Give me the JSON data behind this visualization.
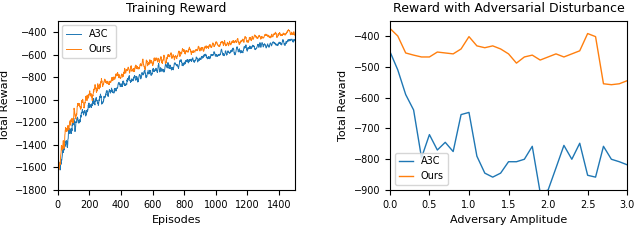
{
  "left_title": "Training Reward",
  "right_title": "Reward with Adversarial Disturbance",
  "left_xlabel": "Episodes",
  "right_xlabel": "Adversary Amplitude",
  "ylabel": "Total Reward",
  "blue_color": "#1f77b4",
  "orange_color": "#ff7f0e",
  "legend_a3c": "A3C",
  "legend_ours": "Ours",
  "left_ylim": [
    -1800,
    -300
  ],
  "left_xlim": [
    0,
    1500
  ],
  "left_yticks": [
    -1800,
    -1600,
    -1400,
    -1200,
    -1000,
    -800,
    -600,
    -400
  ],
  "left_xticks": [
    0,
    200,
    400,
    600,
    800,
    1000,
    1200,
    1400
  ],
  "right_ylim": [
    -900,
    -350
  ],
  "right_xlim": [
    0.0,
    3.0
  ],
  "right_yticks": [
    -900,
    -800,
    -700,
    -600,
    -500,
    -400
  ],
  "right_xticks": [
    0.0,
    0.5,
    1.0,
    1.5,
    2.0,
    2.5,
    3.0
  ],
  "adv_x": [
    0.0,
    0.1,
    0.2,
    0.3,
    0.4,
    0.5,
    0.6,
    0.7,
    0.8,
    0.9,
    1.0,
    1.1,
    1.2,
    1.3,
    1.4,
    1.5,
    1.6,
    1.7,
    1.8,
    1.9,
    2.0,
    2.1,
    2.2,
    2.3,
    2.4,
    2.5,
    2.6,
    2.7,
    2.8,
    2.9,
    3.0
  ],
  "adv_a3c": [
    -450,
    -510,
    -590,
    -640,
    -795,
    -720,
    -770,
    -745,
    -775,
    -655,
    -648,
    -790,
    -845,
    -858,
    -845,
    -808,
    -808,
    -800,
    -758,
    -908,
    -900,
    -828,
    -755,
    -800,
    -748,
    -852,
    -858,
    -758,
    -800,
    -808,
    -818
  ],
  "adv_ours": [
    -375,
    -400,
    -455,
    -462,
    -468,
    -468,
    -452,
    -455,
    -458,
    -442,
    -402,
    -432,
    -438,
    -432,
    -442,
    -458,
    -488,
    -468,
    -462,
    -478,
    -468,
    -458,
    -468,
    -458,
    -448,
    -392,
    -402,
    -555,
    -558,
    -555,
    -545
  ],
  "noise_seed": 17,
  "n_episodes": 1500
}
